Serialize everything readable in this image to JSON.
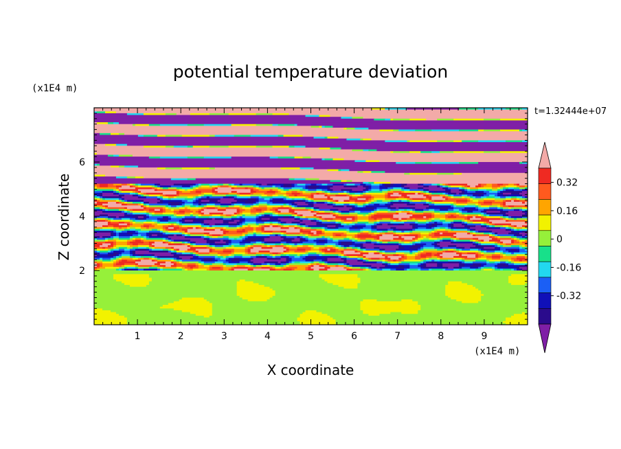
{
  "chart_data": {
    "type": "heatmap",
    "title": "potential temperature deviation",
    "xlabel": "X coordinate",
    "ylabel": "Z coordinate",
    "x_unit": "(x1E4 m)",
    "y_unit": "(x1E4 m)",
    "time_label": "t=1.32444e+07",
    "xlim": [
      0,
      10
    ],
    "ylim": [
      0,
      8
    ],
    "x_ticks": [
      "1",
      "2",
      "3",
      "4",
      "5",
      "6",
      "7",
      "8",
      "9"
    ],
    "y_ticks": [
      "2",
      "4",
      "6"
    ],
    "colorbar": {
      "levels": [
        -0.48,
        -0.4,
        -0.32,
        -0.24,
        -0.16,
        -0.08,
        0,
        0.08,
        0.16,
        0.24,
        0.32,
        0.4,
        0.48
      ],
      "colors": [
        "#7f1fa6",
        "#2a0b8c",
        "#1010b8",
        "#1b5ff5",
        "#22d8f0",
        "#18e08a",
        "#96f03a",
        "#f2f200",
        "#ffa500",
        "#ff5a1e",
        "#ef2a22",
        "#f3aaa8"
      ],
      "tick_labels": [
        "0.32",
        "0.16",
        "0",
        "-0.16",
        "-0.32"
      ],
      "tick_values": [
        0.32,
        0.16,
        0,
        -0.16,
        -0.32
      ],
      "extend": "both"
    },
    "layers": [
      {
        "z": [
          0,
          2.0
        ],
        "pattern": "mixed",
        "values": [
          0.0,
          0.08
        ]
      },
      {
        "z": [
          2.0,
          5.2
        ],
        "pattern": "banded-turbulent",
        "values": "full-range"
      },
      {
        "z": [
          5.2,
          8.0
        ],
        "pattern": "alternating-bands",
        "values": [
          -0.48,
          0.48
        ]
      }
    ]
  }
}
